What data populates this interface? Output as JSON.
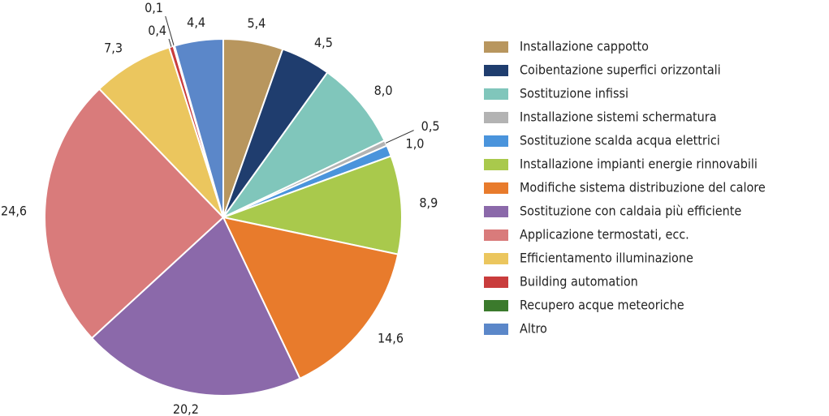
{
  "chart_data": {
    "type": "pie",
    "categories": [
      "Installazione cappotto",
      "Coibentazione superfici orizzontali",
      "Sostituzione infissi",
      "Installazione sistemi schermatura",
      "Sostituzione scalda acqua elettrici",
      "Installazione impianti energie rinnovabili",
      "Modifiche sistema distribuzione del calore",
      "Sostituzione con caldaia più efficiente",
      "Applicazione termostati, ecc.",
      "Efficientamento illuminazione",
      "Building automation",
      "Recupero acque meteoriche",
      "Altro"
    ],
    "values": [
      5.4,
      4.5,
      8.0,
      0.5,
      1.0,
      8.9,
      14.6,
      20.2,
      24.6,
      7.3,
      0.4,
      0.1,
      4.4
    ],
    "value_labels": [
      "5,4",
      "4,5",
      "8,0",
      "0,5",
      "1,0",
      "8,9",
      "14,6",
      "20,2",
      "24,6",
      "7,3",
      "0,4",
      "0,1",
      "4,4"
    ],
    "colors": [
      "#b8965e",
      "#1f3d6e",
      "#80c6bb",
      "#b3b3b3",
      "#4a94dc",
      "#a9c94c",
      "#e87b2c",
      "#8b69aa",
      "#d97b7b",
      "#ebc65e",
      "#c93c3c",
      "#3b7a2c",
      "#5b87c9"
    ],
    "legend": "right"
  }
}
